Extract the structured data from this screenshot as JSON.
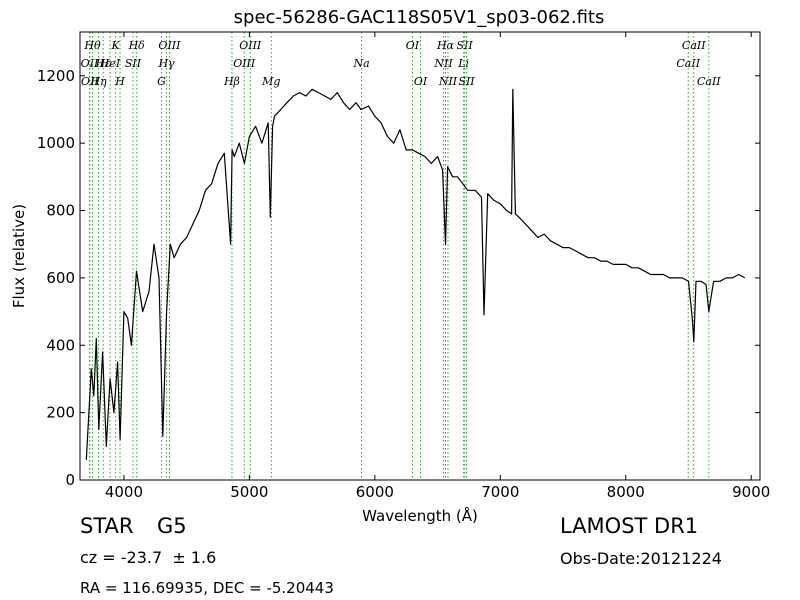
{
  "chart_data": {
    "type": "line",
    "title": "spec-56286-GAC118S05V1_sp03-062.fits",
    "xlabel": "Wavelength (Å)",
    "ylabel": "Flux (relative)",
    "xlim": [
      3650,
      9070
    ],
    "ylim": [
      0,
      1330
    ],
    "xticks": [
      4000,
      5000,
      6000,
      7000,
      8000,
      9000
    ],
    "yticks": [
      0,
      200,
      400,
      600,
      800,
      1000,
      1200
    ],
    "grid": false,
    "line_color": "#000000",
    "marker_color": "#2ca02c",
    "series": [
      {
        "x": [
          3700,
          3740,
          3760,
          3780,
          3800,
          3830,
          3860,
          3890,
          3920,
          3950,
          3970,
          4000,
          4030,
          4060,
          4100,
          4150,
          4200,
          4240,
          4280,
          4310,
          4340,
          4370,
          4400,
          4450,
          4500,
          4550,
          4600,
          4650,
          4700,
          4750,
          4800,
          4850,
          4862,
          4880,
          4920,
          4960,
          5000,
          5050,
          5100,
          5150,
          5167,
          5185,
          5200,
          5250,
          5300,
          5350,
          5400,
          5450,
          5500,
          5550,
          5600,
          5650,
          5700,
          5750,
          5800,
          5850,
          5890,
          5950,
          6000,
          6050,
          6100,
          6150,
          6200,
          6250,
          6300,
          6350,
          6400,
          6450,
          6500,
          6540,
          6563,
          6580,
          6620,
          6660,
          6700,
          6740,
          6800,
          6850,
          6870,
          6900,
          6950,
          7000,
          7050,
          7090,
          7100,
          7120,
          7150,
          7200,
          7250,
          7300,
          7350,
          7400,
          7450,
          7500,
          7550,
          7600,
          7650,
          7700,
          7750,
          7800,
          7850,
          7900,
          7950,
          8000,
          8050,
          8100,
          8150,
          8200,
          8250,
          8300,
          8350,
          8400,
          8450,
          8500,
          8530,
          8542,
          8560,
          8600,
          8640,
          8662,
          8700,
          8750,
          8800,
          8850,
          8900,
          8950
        ],
        "y": [
          60,
          330,
          250,
          420,
          150,
          380,
          100,
          300,
          200,
          350,
          120,
          500,
          480,
          400,
          620,
          500,
          560,
          700,
          600,
          130,
          500,
          700,
          660,
          700,
          720,
          760,
          800,
          860,
          880,
          940,
          970,
          700,
          980,
          960,
          1000,
          940,
          1020,
          1050,
          1000,
          1060,
          780,
          1050,
          1080,
          1100,
          1120,
          1140,
          1150,
          1140,
          1160,
          1150,
          1140,
          1130,
          1150,
          1120,
          1100,
          1120,
          1100,
          1110,
          1080,
          1060,
          1020,
          1000,
          1040,
          980,
          980,
          970,
          960,
          940,
          960,
          920,
          700,
          930,
          900,
          900,
          880,
          860,
          860,
          840,
          490,
          850,
          830,
          820,
          800,
          790,
          1160,
          790,
          780,
          760,
          740,
          720,
          730,
          710,
          700,
          690,
          690,
          680,
          670,
          660,
          660,
          650,
          650,
          640,
          640,
          640,
          630,
          630,
          620,
          610,
          610,
          610,
          600,
          600,
          600,
          590,
          480,
          410,
          590,
          590,
          580,
          500,
          590,
          590,
          600,
          600,
          610,
          600
        ]
      }
    ],
    "lines": [
      {
        "x": 3726,
        "label": "OII",
        "row": 2
      },
      {
        "x": 3729,
        "label": "OII",
        "row": 3
      },
      {
        "x": 3750,
        "label": "Hθ",
        "row": 1
      },
      {
        "x": 3798,
        "label": "Hη",
        "row": 3
      },
      {
        "x": 3835,
        "label": "Hε",
        "row": 2
      },
      {
        "x": 3889,
        "label": "HeI",
        "row": 2
      },
      {
        "x": 3934,
        "label": "K",
        "row": 1
      },
      {
        "x": 3969,
        "label": "H",
        "row": 3
      },
      {
        "x": 4072,
        "label": "SII",
        "row": 2
      },
      {
        "x": 4102,
        "label": "Hδ",
        "row": 1
      },
      {
        "x": 4300,
        "label": "G",
        "row": 3
      },
      {
        "x": 4340,
        "label": "Hγ",
        "row": 2
      },
      {
        "x": 4363,
        "label": "OIII",
        "row": 1
      },
      {
        "x": 4861,
        "label": "Hβ",
        "row": 3
      },
      {
        "x": 4959,
        "label": "OIII",
        "row": 2
      },
      {
        "x": 5007,
        "label": "OIII",
        "row": 1
      },
      {
        "x": 5175,
        "label": "Mg",
        "row": 3
      },
      {
        "x": 5894,
        "label": "Na",
        "row": 2
      },
      {
        "x": 6300,
        "label": "OI",
        "row": 1
      },
      {
        "x": 6364,
        "label": "OI",
        "row": 3
      },
      {
        "x": 6548,
        "label": "NII",
        "row": 2
      },
      {
        "x": 6563,
        "label": "Hα",
        "row": 1
      },
      {
        "x": 6583,
        "label": "NII",
        "row": 3
      },
      {
        "x": 6708,
        "label": "Li",
        "row": 2
      },
      {
        "x": 6716,
        "label": "SII",
        "row": 1
      },
      {
        "x": 6731,
        "label": "SII",
        "row": 3
      },
      {
        "x": 8498,
        "label": "CaII",
        "row": 2
      },
      {
        "x": 8542,
        "label": "CaII",
        "row": 1
      },
      {
        "x": 8662,
        "label": "CaII",
        "row": 3
      }
    ]
  },
  "info": {
    "class_label": "STAR",
    "subclass_label": "G5",
    "survey_label": "LAMOST DR1",
    "cz_label": "cz = -23.7  ± 1.6",
    "obs_date_label": "Obs-Date:20121224",
    "coords_label": "RA = 116.69935, DEC = -5.20443"
  }
}
